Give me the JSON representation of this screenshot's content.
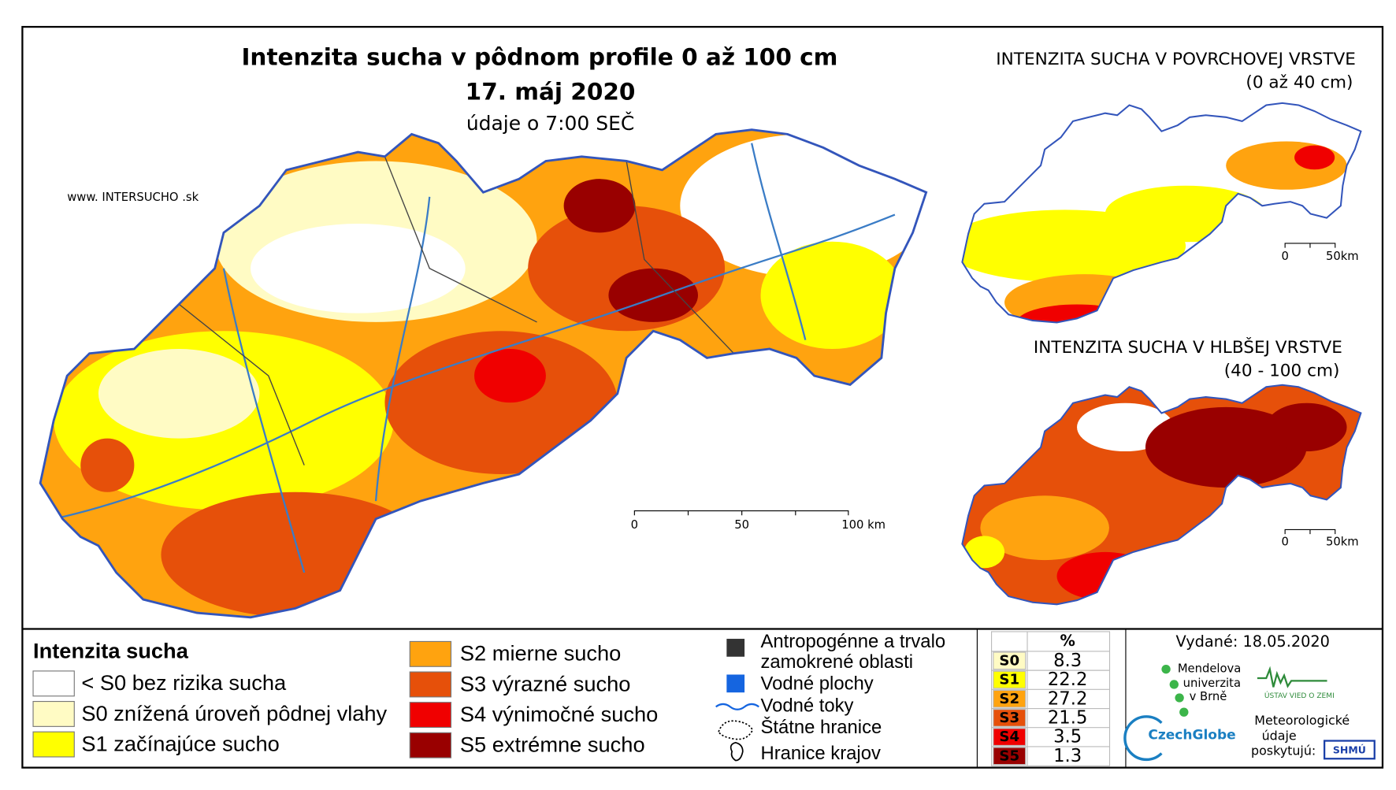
{
  "main_map": {
    "title": "Intenzita sucha v pôdnom profile 0 až 100 cm",
    "date": "17. máj 2020",
    "subtitle": "údaje o 7:00 SEČ",
    "website": "www. INTERSUCHO .sk",
    "scale": [
      "0",
      "50",
      "100 km"
    ]
  },
  "inset_surface": {
    "title": "INTENZITA SUCHA V POVRCHOVEJ VRSTVE",
    "subtitle": "(0 až 40 cm)",
    "scale": [
      "0",
      "50km"
    ]
  },
  "inset_deep": {
    "title": "INTENZITA SUCHA V HLBŠEJ VRSTVE",
    "subtitle": "(40 - 100 cm)",
    "scale": [
      "0",
      "50km"
    ]
  },
  "legend": {
    "title": "Intenzita sucha",
    "items": [
      {
        "label": "< S0 bez rizika sucha",
        "color": "#ffffff"
      },
      {
        "label": "S0 znížená úroveň pôdnej vlahy",
        "color": "#fffbc4"
      },
      {
        "label": "S1 začínajúce sucho",
        "color": "#ffff00"
      },
      {
        "label": "S2 mierne sucho",
        "color": "#ffa30f"
      },
      {
        "label": "S3 výrazné sucho",
        "color": "#e6500a"
      },
      {
        "label": "S4 výnimočné sucho",
        "color": "#f00000"
      },
      {
        "label": "S5 extrémne sucho",
        "color": "#990000"
      }
    ]
  },
  "other_legend": [
    {
      "label": [
        "Antropogénne a trvalo",
        "zamokrené oblasti"
      ]
    },
    {
      "label": [
        "Vodné plochy"
      ]
    },
    {
      "label": [
        "Vodné toky"
      ]
    },
    {
      "label": [
        "Štátne hranice"
      ]
    },
    {
      "label": [
        "Hranice krajov"
      ]
    }
  ],
  "table": {
    "header": "%",
    "rows": [
      {
        "class": "S0",
        "percent": 8.3,
        "color": "#fffbc4"
      },
      {
        "class": "S1",
        "percent": 22.2,
        "color": "#ffff00"
      },
      {
        "class": "S2",
        "percent": 27.2,
        "color": "#ffa30f"
      },
      {
        "class": "S3",
        "percent": 21.5,
        "color": "#e6500a"
      },
      {
        "class": "S4",
        "percent": 3.5,
        "color": "#f00000"
      },
      {
        "class": "S5",
        "percent": 1.3,
        "color": "#990000"
      }
    ]
  },
  "footer": {
    "issued": "Vydané: 18.05.2020",
    "mendel": [
      "Mendelova",
      "univerzita",
      "v Brně"
    ],
    "uvz": "ÚSTAV VIED O ZEMI",
    "czechglobe": "CzechGlobe",
    "providers": [
      "Meteorologické",
      "údaje",
      "poskytujú:"
    ],
    "shmu": "SHMÚ"
  }
}
